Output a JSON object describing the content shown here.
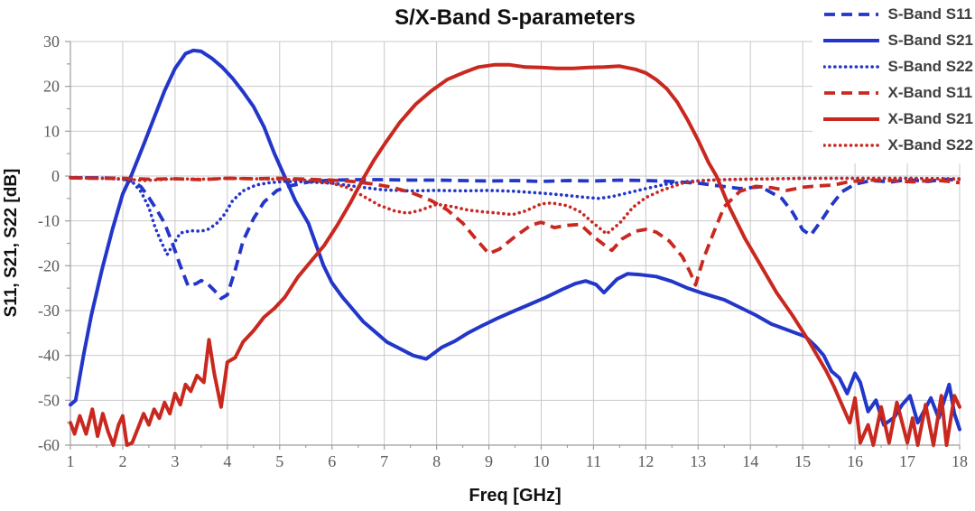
{
  "page": {
    "background": "#ffffff"
  },
  "chart_data": {
    "type": "line",
    "title": "S/X-Band S-parameters",
    "xlabel": "Freq [GHz]",
    "ylabel": "S11, S21, S22 [dB]",
    "xlim": [
      1,
      18
    ],
    "ylim": [
      -60,
      30
    ],
    "xticks": [
      1,
      2,
      3,
      4,
      5,
      6,
      7,
      8,
      9,
      10,
      11,
      12,
      13,
      14,
      15,
      16,
      17,
      18
    ],
    "yticks": [
      30,
      20,
      10,
      0,
      -10,
      -20,
      -30,
      -40,
      -50,
      -60
    ],
    "grid": true,
    "legend_position": "top-right",
    "colors": {
      "blue": "#2236c9",
      "red": "#c9281f",
      "grid": "#c9c9c9",
      "axis": "#9e9e9e",
      "tick_text": "#5a5a5a",
      "title_text": "#111111",
      "legend_text": "#3f3f3f",
      "background": "#ffffff"
    },
    "series": [
      {
        "name": "S-Band S11",
        "color": "#2236c9",
        "style": "dashed",
        "z": 1,
        "x": [
          1,
          1.6,
          2.0,
          2.2,
          2.35,
          2.5,
          2.65,
          2.8,
          2.95,
          3.1,
          3.25,
          3.4,
          3.5,
          3.62,
          3.75,
          3.88,
          4.0,
          4.15,
          4.3,
          4.5,
          4.7,
          4.95,
          5.2,
          5.6,
          6,
          6.5,
          7,
          7.5,
          8,
          8.5,
          9,
          9.5,
          10,
          10.5,
          11,
          11.5,
          12,
          12.5,
          13,
          13.4,
          13.8,
          14.2,
          14.6,
          14.8,
          15.0,
          15.15,
          15.35,
          15.55,
          15.75,
          16.0,
          16.3,
          16.7,
          17,
          17.4,
          17.7,
          18
        ],
        "y": [
          -0.4,
          -0.4,
          -0.6,
          -1.2,
          -2.4,
          -4.8,
          -7.5,
          -10.5,
          -15,
          -20,
          -24.5,
          -24,
          -23.3,
          -24,
          -25.5,
          -27.3,
          -26.5,
          -21,
          -14.5,
          -9.5,
          -5.8,
          -3.2,
          -2.2,
          -1.2,
          -0.9,
          -0.8,
          -0.8,
          -0.9,
          -0.9,
          -1.0,
          -1.1,
          -1.0,
          -1.2,
          -1.0,
          -1.1,
          -0.9,
          -1.0,
          -1.2,
          -1.6,
          -2.2,
          -2.8,
          -2.4,
          -5,
          -8,
          -12,
          -13.2,
          -10,
          -6.5,
          -3.5,
          -1.8,
          -1.0,
          -1.3,
          -0.8,
          -1.2,
          -0.7,
          -0.9
        ]
      },
      {
        "name": "S-Band S21",
        "color": "#2236c9",
        "style": "solid",
        "z": 3,
        "x": [
          1,
          1.1,
          1.25,
          1.4,
          1.6,
          1.8,
          2.0,
          2.16,
          2.4,
          2.6,
          2.8,
          3.0,
          3.2,
          3.35,
          3.5,
          3.7,
          3.9,
          4.1,
          4.3,
          4.5,
          4.7,
          4.9,
          5.13,
          5.3,
          5.55,
          5.84,
          6.0,
          6.2,
          6.42,
          6.6,
          6.85,
          7.05,
          7.3,
          7.55,
          7.8,
          8.1,
          8.35,
          8.6,
          8.85,
          9.15,
          9.5,
          9.8,
          10.1,
          10.4,
          10.65,
          10.85,
          11.05,
          11.2,
          11.45,
          11.65,
          11.9,
          12.2,
          12.5,
          12.8,
          13.1,
          13.5,
          13.8,
          14.1,
          14.4,
          14.75,
          15.05,
          15.25,
          15.4,
          15.55,
          15.7,
          15.85,
          16.0,
          16.1,
          16.25,
          16.4,
          16.55,
          16.75,
          16.9,
          17.05,
          17.2,
          17.45,
          17.6,
          17.8,
          17.9,
          18
        ],
        "y": [
          -51,
          -50,
          -40,
          -31,
          -21,
          -12,
          -4,
          0,
          7,
          13,
          19,
          24,
          27.3,
          28,
          27.8,
          26.3,
          24.3,
          21.8,
          18.8,
          15.5,
          11,
          5,
          -1,
          -5.5,
          -10.5,
          -20,
          -23.8,
          -27,
          -30,
          -32.5,
          -35,
          -37,
          -38.5,
          -40,
          -40.8,
          -38.2,
          -36.8,
          -35,
          -33.5,
          -31.8,
          -30,
          -28.5,
          -27,
          -25.3,
          -24,
          -23.4,
          -24.2,
          -26,
          -23,
          -21.8,
          -22,
          -22.4,
          -23.5,
          -25,
          -26.2,
          -27.6,
          -29.3,
          -31,
          -33,
          -34.5,
          -35.8,
          -38,
          -40,
          -43.5,
          -45,
          -48.5,
          -44,
          -46,
          -52.5,
          -50,
          -55.5,
          -53.8,
          -51,
          -49,
          -55,
          -49.5,
          -54,
          -46.5,
          -53,
          -56.5
        ]
      },
      {
        "name": "S-Band S22",
        "color": "#2236c9",
        "style": "dotted",
        "z": 2,
        "x": [
          1,
          1.5,
          2.0,
          2.2,
          2.35,
          2.5,
          2.62,
          2.73,
          2.85,
          2.95,
          3.1,
          3.3,
          3.5,
          3.65,
          3.8,
          3.95,
          4.1,
          4.3,
          4.55,
          4.8,
          5.1,
          5.5,
          6.0,
          6.5,
          7.0,
          7.5,
          8.0,
          8.5,
          9.0,
          9.5,
          10.0,
          10.4,
          10.8,
          11.1,
          11.35,
          11.6,
          12.0,
          12.4,
          12.8,
          13.2,
          13.8,
          14.5,
          15.0,
          16.0,
          17.0,
          18.0
        ],
        "y": [
          -0.3,
          -0.4,
          -0.7,
          -1.5,
          -3.5,
          -7,
          -11.5,
          -14.5,
          -17.5,
          -15.5,
          -12.7,
          -12.2,
          -12.3,
          -11.8,
          -10.5,
          -8.5,
          -5.5,
          -3.3,
          -2.0,
          -1.5,
          -1.2,
          -1.3,
          -1.6,
          -2.4,
          -3.1,
          -3.3,
          -3.2,
          -3.3,
          -3.2,
          -3.4,
          -3.8,
          -4.2,
          -4.7,
          -5.0,
          -4.6,
          -3.9,
          -2.8,
          -1.8,
          -1.2,
          -0.9,
          -0.7,
          -0.6,
          -0.5,
          -0.5,
          -0.5,
          -0.6
        ]
      },
      {
        "name": "X-Band S11",
        "color": "#c9281f",
        "style": "dashed",
        "z": 4,
        "x": [
          1,
          1.5,
          2,
          2.5,
          3,
          3.5,
          4,
          4.5,
          5,
          5.5,
          6,
          6.4,
          6.8,
          7.1,
          7.5,
          7.9,
          8.2,
          8.5,
          8.75,
          9.0,
          9.2,
          9.5,
          9.8,
          10.0,
          10.25,
          10.5,
          10.75,
          11.0,
          11.2,
          11.35,
          11.55,
          11.8,
          12.0,
          12.2,
          12.45,
          12.7,
          12.85,
          12.95,
          13.1,
          13.3,
          13.5,
          13.8,
          14.1,
          14.4,
          14.7,
          15.0,
          15.3,
          15.6,
          15.9,
          16.3,
          16.7,
          17.1,
          17.5,
          17.8,
          18
        ],
        "y": [
          -0.4,
          -0.5,
          -0.5,
          -0.7,
          -0.6,
          -0.8,
          -0.5,
          -0.6,
          -0.5,
          -0.7,
          -0.9,
          -1.2,
          -1.8,
          -2.4,
          -3.6,
          -5.5,
          -7.5,
          -10.5,
          -14,
          -17.3,
          -16.3,
          -13.5,
          -11,
          -10.3,
          -11.5,
          -11,
          -10.8,
          -13.5,
          -15.3,
          -16.6,
          -14,
          -12.3,
          -11.9,
          -12.5,
          -14.5,
          -18,
          -21.5,
          -24.3,
          -18.5,
          -12.5,
          -6.8,
          -3.4,
          -2.3,
          -2.6,
          -3.2,
          -2.5,
          -2.2,
          -2.0,
          -1.2,
          -0.9,
          -1.0,
          -1.3,
          -0.9,
          -1.2,
          -1.5
        ]
      },
      {
        "name": "X-Band S21",
        "color": "#c9281f",
        "style": "solid",
        "z": 6,
        "x": [
          1,
          1.08,
          1.18,
          1.3,
          1.42,
          1.52,
          1.62,
          1.72,
          1.82,
          1.92,
          2.0,
          2.08,
          2.18,
          2.3,
          2.4,
          2.5,
          2.6,
          2.7,
          2.8,
          2.9,
          3.0,
          3.1,
          3.2,
          3.3,
          3.42,
          3.55,
          3.65,
          3.75,
          3.88,
          4.0,
          4.15,
          4.3,
          4.5,
          4.7,
          4.9,
          5.1,
          5.35,
          5.6,
          5.85,
          6.1,
          6.35,
          6.6,
          6.8,
          7.0,
          7.3,
          7.6,
          7.9,
          8.2,
          8.5,
          8.8,
          9.1,
          9.4,
          9.7,
          10.0,
          10.3,
          10.6,
          10.9,
          11.2,
          11.5,
          11.8,
          12.0,
          12.2,
          12.4,
          12.6,
          12.8,
          13.0,
          13.2,
          13.35,
          13.6,
          13.9,
          14.2,
          14.5,
          14.8,
          15.1,
          15.45,
          15.6,
          15.75,
          15.9,
          16.0,
          16.1,
          16.25,
          16.35,
          16.5,
          16.65,
          16.8,
          17.0,
          17.1,
          17.2,
          17.35,
          17.5,
          17.65,
          17.75,
          17.9,
          18
        ],
        "y": [
          -55,
          -57.5,
          -53.5,
          -57.5,
          -52,
          -58,
          -53,
          -57,
          -60,
          -55.5,
          -53.5,
          -60,
          -59.5,
          -56,
          -53,
          -55.5,
          -52,
          -54,
          -50.5,
          -53,
          -48.5,
          -51,
          -46.5,
          -48,
          -44.5,
          -46,
          -36.5,
          -44,
          -51.5,
          -41.5,
          -40.5,
          -37,
          -34.5,
          -31.5,
          -29.5,
          -27,
          -22.5,
          -19,
          -15.5,
          -11,
          -6,
          -0.5,
          3.5,
          7,
          12,
          16,
          19,
          21.5,
          23,
          24.3,
          24.8,
          24.8,
          24.3,
          24.2,
          24.0,
          24.0,
          24.2,
          24.3,
          24.5,
          23.8,
          23,
          21.5,
          19.5,
          16.5,
          12.5,
          8,
          3,
          0,
          -7,
          -14,
          -20,
          -26,
          -31,
          -36.5,
          -43.5,
          -47,
          -51,
          -55,
          -49.5,
          -59.5,
          -55.5,
          -60,
          -51.5,
          -59.5,
          -50.5,
          -59.5,
          -54,
          -60,
          -51,
          -60,
          -49,
          -60,
          -49,
          -51.5
        ]
      },
      {
        "name": "X-Band S22",
        "color": "#c9281f",
        "style": "dotted",
        "z": 5,
        "x": [
          1,
          1.5,
          2,
          2.4,
          2.7,
          3.0,
          3.5,
          4,
          4.5,
          5,
          5.5,
          6,
          6.3,
          6.6,
          6.9,
          7.2,
          7.45,
          7.7,
          8.0,
          8.3,
          8.6,
          8.9,
          9.2,
          9.45,
          9.7,
          10.0,
          10.2,
          10.5,
          10.75,
          11.0,
          11.25,
          11.5,
          11.75,
          12.0,
          12.3,
          12.7,
          13.1,
          13.5,
          14,
          15,
          16,
          17,
          18
        ],
        "y": [
          -0.4,
          -0.5,
          -0.6,
          -1.0,
          -0.8,
          -0.6,
          -0.7,
          -0.5,
          -0.6,
          -0.7,
          -0.9,
          -1.6,
          -2.6,
          -4.5,
          -6.5,
          -7.8,
          -8.3,
          -7.6,
          -6.3,
          -6.8,
          -7.6,
          -8.0,
          -8.3,
          -8.6,
          -7.8,
          -6.2,
          -6.0,
          -6.6,
          -8.0,
          -10.5,
          -12.9,
          -10.5,
          -7.0,
          -4.8,
          -3.2,
          -1.6,
          -1.0,
          -0.8,
          -0.7,
          -0.5,
          -0.5,
          -0.5,
          -0.7
        ]
      }
    ]
  }
}
